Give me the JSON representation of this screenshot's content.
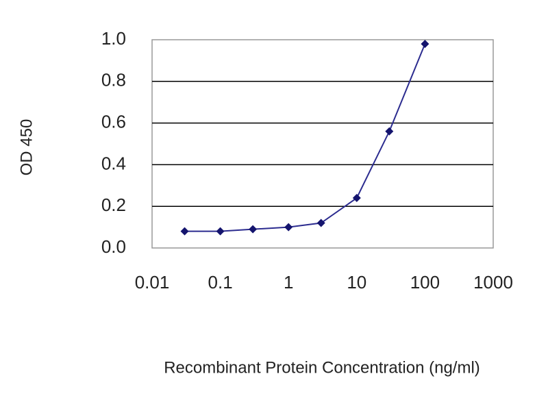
{
  "chart_data": {
    "type": "line",
    "x_label": "Recombinant Protein Concentration (ng/ml)",
    "y_label": "OD 450",
    "xscale": "log",
    "x": [
      0.03,
      0.1,
      0.3,
      1,
      3,
      10,
      30,
      100
    ],
    "series": [
      {
        "color": "#2b2b8f",
        "values": [
          0.08,
          0.08,
          0.09,
          0.1,
          0.12,
          0.24,
          0.56,
          0.98
        ]
      }
    ],
    "xlim": [
      0.01,
      1000
    ],
    "xticks": [
      0.01,
      0.1,
      1,
      10,
      100,
      1000
    ],
    "ylim": [
      0,
      1
    ],
    "yticks": [
      {
        "value": 0,
        "label": "0.0"
      },
      0.2,
      0.4,
      0.6,
      0.8,
      {
        "value": 1,
        "label": "1.0"
      }
    ],
    "grid": true
  }
}
